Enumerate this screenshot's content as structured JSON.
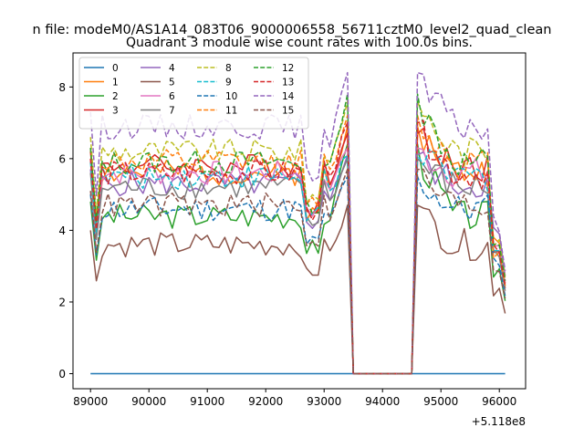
{
  "chart_data": {
    "type": "line",
    "suptitle": "n file: modeM0/AS1A14_083T06_9000006558_56711cztM0_level2_quad_clean",
    "title": "Quadrant 3 module wise count rates with 100.0s bins.",
    "xlabel": "",
    "ylabel": "",
    "x_offset_label": "+5.118e8",
    "xlim": [
      88700,
      96450
    ],
    "ylim": [
      -0.42,
      8.95
    ],
    "x_ticks": [
      89000,
      90000,
      91000,
      92000,
      93000,
      94000,
      95000,
      96000
    ],
    "x_tick_labels": [
      "89000",
      "90000",
      "91000",
      "92000",
      "93000",
      "94000",
      "95000",
      "96000"
    ],
    "y_ticks": [
      0,
      2,
      4,
      6,
      8
    ],
    "y_tick_labels": [
      "0",
      "2",
      "4",
      "6",
      "8"
    ],
    "grid": false,
    "legend_position": "upper-left",
    "legend_columns": 4,
    "x_start": 89000,
    "x_step": 100,
    "num_points": 72,
    "gap": {
      "from": 93500,
      "to": 94500,
      "drop_start": 93400,
      "recover_end": 94600
    },
    "series": [
      {
        "name": "0",
        "color": "#1f77b4",
        "style": "solid",
        "level": 0.0,
        "peak": 0.0,
        "end": 0.0,
        "seed": 1
      },
      {
        "name": "1",
        "color": "#ff7f0e",
        "style": "solid",
        "level": 5.6,
        "peak": 6.9,
        "end": 3.6,
        "seed": 2
      },
      {
        "name": "2",
        "color": "#2ca02c",
        "style": "solid",
        "level": 4.4,
        "peak": 6.4,
        "end": 2.9,
        "seed": 3
      },
      {
        "name": "3",
        "color": "#d62728",
        "style": "solid",
        "level": 5.8,
        "peak": 6.7,
        "end": 3.4,
        "seed": 4
      },
      {
        "name": "4",
        "color": "#9467bd",
        "style": "solid",
        "level": 5.3,
        "peak": 6.1,
        "end": 3.9,
        "seed": 5
      },
      {
        "name": "5",
        "color": "#8c564b",
        "style": "solid",
        "level": 3.6,
        "peak": 4.7,
        "end": 2.4,
        "seed": 6
      },
      {
        "name": "6",
        "color": "#e377c2",
        "style": "solid",
        "level": 5.6,
        "peak": 6.3,
        "end": 3.6,
        "seed": 7
      },
      {
        "name": "7",
        "color": "#7f7f7f",
        "style": "solid",
        "level": 5.2,
        "peak": 6.0,
        "end": 3.3,
        "seed": 8
      },
      {
        "name": "8",
        "color": "#bcbd22",
        "style": "dashed",
        "level": 6.2,
        "peak": 7.6,
        "end": 3.8,
        "seed": 9
      },
      {
        "name": "9",
        "color": "#17becf",
        "style": "dashed",
        "level": 5.5,
        "peak": 6.1,
        "end": 3.5,
        "seed": 10
      },
      {
        "name": "10",
        "color": "#1f77b4",
        "style": "dashed",
        "level": 4.6,
        "peak": 5.5,
        "end": 3.1,
        "seed": 11
      },
      {
        "name": "11",
        "color": "#ff7f0e",
        "style": "dashed",
        "level": 5.9,
        "peak": 7.2,
        "end": 3.5,
        "seed": 12
      },
      {
        "name": "12",
        "color": "#2ca02c",
        "style": "dashed",
        "level": 5.9,
        "peak": 7.8,
        "end": 3.7,
        "seed": 13
      },
      {
        "name": "13",
        "color": "#d62728",
        "style": "dashed",
        "level": 5.6,
        "peak": 7.0,
        "end": 3.5,
        "seed": 14
      },
      {
        "name": "14",
        "color": "#9467bd",
        "style": "dashed",
        "level": 6.9,
        "peak": 8.4,
        "end": 4.1,
        "seed": 15
      },
      {
        "name": "15",
        "color": "#8c564b",
        "style": "dashed",
        "level": 4.7,
        "peak": 5.7,
        "end": 3.0,
        "seed": 16
      }
    ]
  }
}
